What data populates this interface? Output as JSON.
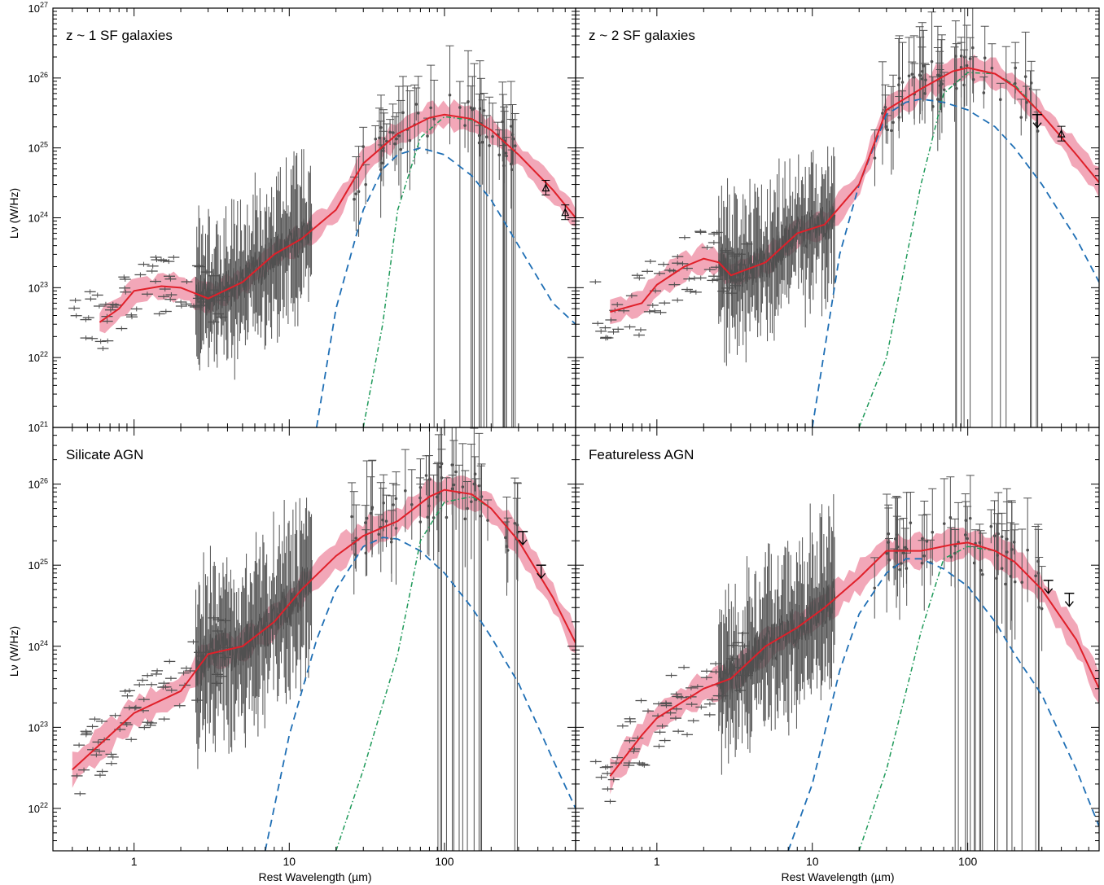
{
  "figure": {
    "xlabel": "Rest Wavelength (µm)",
    "ylabel": "Lν (W/Hz)",
    "colors": {
      "data": "#505050",
      "total_model": "#e0202a",
      "model_band": "#f2a7b8",
      "agn_component": "#1f6fb5",
      "sf_component": "#1f9a5a",
      "upper_limit": "#000000"
    }
  },
  "chart_data": [
    {
      "type": "line",
      "title": "z ~ 1 SF galaxies",
      "xlabel": "",
      "ylabel": "Lν (W/Hz)",
      "xscale": "log",
      "yscale": "log",
      "xlim": [
        0.3,
        700
      ],
      "ylim": [
        1e+21,
        1e+27
      ],
      "x_ticks": [],
      "y_ticks": [
        "10^21",
        "10^22",
        "10^23",
        "10^24",
        "10^25",
        "10^26",
        "10^27"
      ],
      "series": [
        {
          "name": "",
          "role": "total_model",
          "x": [
            0.6,
            0.8,
            1.0,
            1.5,
            2.0,
            3.0,
            5.0,
            8.0,
            12.0,
            20.0,
            30.0,
            50.0,
            80.0,
            100.0,
            150.0,
            200.0,
            300.0,
            500.0,
            700.0
          ],
          "y": [
            3.2e+22,
            5e+22,
            9e+22,
            1.05e+23,
            1e+23,
            7e+22,
            1.2e+23,
            3e+23,
            5e+23,
            1.3e+24,
            6e+24,
            1.6e+25,
            2.7e+25,
            3e+25,
            2.6e+25,
            1.8e+25,
            8e+24,
            2.5e+24,
            1e+24
          ]
        },
        {
          "name": "",
          "role": "agn_component",
          "x": [
            15,
            20,
            30,
            40,
            50,
            70,
            100,
            150,
            200,
            300,
            500,
            700
          ],
          "y": [
            1e+21,
            5e+22,
            1.3e+24,
            5e+24,
            8e+24,
            1e+25,
            8e+24,
            4e+24,
            1.8e+24,
            4e+23,
            6e+22,
            3e+22
          ]
        },
        {
          "name": "",
          "role": "sf_component",
          "x": [
            30,
            40,
            50,
            70,
            100,
            150,
            200,
            300,
            500,
            700
          ],
          "y": [
            1e+21,
            3e+22,
            1.3e+24,
            1.4e+25,
            2.8e+25,
            2.5e+25,
            1.8e+25,
            8e+24,
            2.5e+24,
            1e+24
          ]
        }
      ],
      "upper_limits": [],
      "lower_markers": [
        {
          "x": 450,
          "y": 2.7e+24
        },
        {
          "x": 600,
          "y": 1.2e+24
        }
      ]
    },
    {
      "type": "line",
      "title": "z ~ 2 SF galaxies",
      "xlabel": "",
      "ylabel": "",
      "xscale": "log",
      "yscale": "log",
      "xlim": [
        0.3,
        700
      ],
      "ylim": [
        1e+21,
        1e+27
      ],
      "x_ticks": [],
      "y_ticks": [],
      "series": [
        {
          "name": "",
          "role": "total_model",
          "x": [
            0.5,
            0.8,
            1.0,
            1.5,
            2.0,
            2.5,
            3.0,
            5.0,
            8.0,
            12.0,
            20.0,
            30.0,
            50.0,
            80.0,
            100.0,
            150.0,
            200.0,
            300.0,
            500.0,
            700.0
          ],
          "y": [
            4.5e+22,
            6e+22,
            1.1e+23,
            2e+23,
            2.6e+23,
            2.3e+23,
            1.5e+23,
            2.3e+23,
            6e+23,
            8e+23,
            3e+24,
            3.5e+25,
            7e+25,
            1.25e+26,
            1.4e+26,
            1.15e+26,
            7.5e+25,
            3e+25,
            8e+24,
            3.2e+24
          ]
        },
        {
          "name": "",
          "role": "agn_component",
          "x": [
            10,
            15,
            20,
            30,
            40,
            50,
            70,
            100,
            150,
            200,
            300,
            500,
            700
          ],
          "y": [
            1e+21,
            3e+23,
            3e+24,
            3e+25,
            4.5e+25,
            5e+25,
            4.5e+25,
            3.5e+25,
            2e+25,
            1e+25,
            3e+24,
            5e+23,
            1.2e+23
          ]
        },
        {
          "name": "",
          "role": "sf_component",
          "x": [
            20,
            30,
            50,
            70,
            100,
            150,
            200,
            300,
            500,
            700
          ],
          "y": [
            1e+21,
            1e+22,
            3e+24,
            6e+25,
            1.2e+26,
            1.15e+26,
            8e+25,
            3e+25,
            8e+24,
            3.2e+24
          ]
        }
      ],
      "upper_limits": [
        {
          "x": 280,
          "y": 3e+25
        }
      ],
      "lower_markers": [
        {
          "x": 400,
          "y": 1.6e+25
        }
      ]
    },
    {
      "type": "line",
      "title": "Silicate AGN",
      "xlabel": "Rest Wavelength (µm)",
      "ylabel": "Lν (W/Hz)",
      "xscale": "log",
      "yscale": "log",
      "xlim": [
        0.3,
        700
      ],
      "ylim": [
        3e+21,
        5e+26
      ],
      "x_ticks": [
        "1",
        "10",
        "100"
      ],
      "y_ticks": [
        "10^22",
        "10^23",
        "10^24",
        "10^25",
        "10^26"
      ],
      "series": [
        {
          "name": "",
          "role": "total_model",
          "x": [
            0.4,
            0.7,
            1.0,
            2.0,
            3.0,
            5.0,
            8.0,
            12.0,
            20.0,
            30.0,
            50.0,
            80.0,
            100.0,
            150.0,
            200.0,
            300.0,
            500.0,
            700.0
          ],
          "y": [
            3e+22,
            8e+22,
            1.5e+23,
            2.8e+23,
            8e+23,
            1e+24,
            2e+24,
            5e+24,
            1.3e+25,
            2.3e+25,
            3.5e+25,
            7e+25,
            8.5e+25,
            7.5e+25,
            5e+25,
            2e+25,
            4e+24,
            1.1e+24
          ]
        },
        {
          "name": "",
          "role": "agn_component",
          "x": [
            7,
            10,
            15,
            20,
            30,
            40,
            50,
            70,
            100,
            150,
            200,
            300,
            500,
            700
          ],
          "y": [
            3e+21,
            8e+22,
            1.2e+24,
            5e+24,
            1.7e+25,
            2.2e+25,
            2.1e+25,
            1.5e+25,
            8e+24,
            3e+24,
            1.3e+24,
            3.5e+23,
            4e+22,
            1e+22
          ]
        },
        {
          "name": "",
          "role": "sf_component",
          "x": [
            20,
            30,
            50,
            70,
            100,
            150,
            200,
            300,
            500,
            700
          ],
          "y": [
            3e+21,
            3e+22,
            8e+23,
            2e+25,
            6e+25,
            7e+25,
            5e+25,
            2e+25,
            4e+24,
            1.1e+24
          ]
        }
      ],
      "upper_limits": [
        {
          "x": 320,
          "y": 2.6e+25
        },
        {
          "x": 420,
          "y": 1e+25
        }
      ],
      "lower_markers": []
    },
    {
      "type": "line",
      "title": "Featureless AGN",
      "xlabel": "Rest Wavelength (µm)",
      "ylabel": "",
      "xscale": "log",
      "yscale": "log",
      "xlim": [
        0.3,
        700
      ],
      "ylim": [
        3e+21,
        5e+26
      ],
      "x_ticks": [
        "1",
        "10",
        "100"
      ],
      "y_ticks": [],
      "series": [
        {
          "name": "",
          "role": "total_model",
          "x": [
            0.5,
            0.8,
            1.0,
            2.0,
            3.0,
            5.0,
            8.0,
            12.0,
            20.0,
            30.0,
            50.0,
            80.0,
            100.0,
            150.0,
            200.0,
            300.0,
            500.0,
            700.0
          ],
          "y": [
            2.5e+22,
            8e+22,
            1.3e+23,
            3e+23,
            4e+23,
            1e+24,
            1.7e+24,
            3e+24,
            7e+24,
            1.5e+25,
            1.5e+25,
            1.8e+25,
            1.9e+25,
            1.5e+25,
            1.1e+25,
            5e+24,
            1.2e+24,
            3e+23
          ]
        },
        {
          "name": "",
          "role": "agn_component",
          "x": [
            7,
            10,
            15,
            20,
            30,
            40,
            50,
            70,
            100,
            150,
            200,
            300,
            500,
            700
          ],
          "y": [
            3e+21,
            2e+22,
            5e+23,
            2.5e+24,
            8e+24,
            1.2e+25,
            1.2e+25,
            9e+24,
            5.5e+24,
            2e+24,
            8e+23,
            2.5e+23,
            3e+22,
            6e+21
          ]
        },
        {
          "name": "",
          "role": "sf_component",
          "x": [
            20,
            30,
            50,
            70,
            100,
            150,
            200,
            300,
            500,
            700
          ],
          "y": [
            3e+21,
            3e+22,
            1.5e+24,
            1.2e+25,
            1.7e+25,
            1.5e+25,
            1.1e+25,
            5e+24,
            1.2e+24,
            3e+23
          ]
        }
      ],
      "upper_limits": [
        {
          "x": 330,
          "y": 6.5e+24
        },
        {
          "x": 450,
          "y": 4.5e+24
        }
      ],
      "lower_markers": []
    }
  ]
}
